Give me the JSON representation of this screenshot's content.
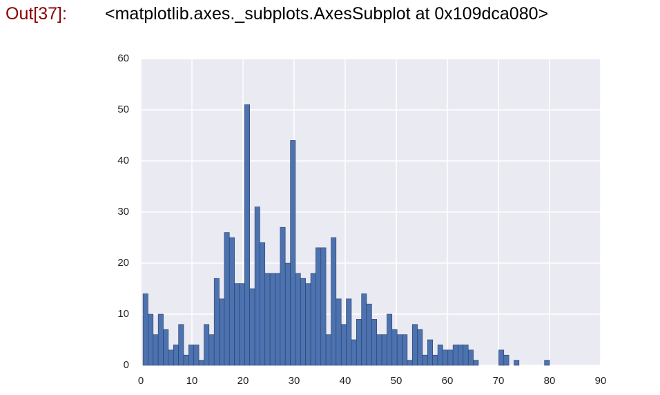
{
  "prompt": "Out[37]:",
  "output_text": "<matplotlib.axes._subplots.AxesSubplot at 0x109dca080>",
  "chart_data": {
    "type": "histogram",
    "bins": [
      0.42,
      1.41,
      2.41,
      3.4,
      4.4,
      5.39,
      6.39,
      7.38,
      8.38,
      9.37,
      10.37,
      11.36,
      12.36,
      13.35,
      14.35,
      15.34,
      16.34,
      17.33,
      18.33,
      19.32,
      20.32,
      21.31,
      22.31,
      23.3,
      24.29,
      25.29,
      26.28,
      27.28,
      28.27,
      29.27,
      30.26,
      31.26,
      32.25,
      33.25,
      34.24,
      35.24,
      36.23,
      37.23,
      38.22,
      39.22,
      40.21,
      41.21,
      42.2,
      43.2,
      44.19,
      45.19,
      46.18,
      47.17,
      48.17,
      49.16,
      50.16,
      51.15,
      52.15,
      53.14,
      54.14,
      55.13,
      56.13,
      57.12,
      58.12,
      59.11,
      60.11,
      61.1,
      62.1,
      63.09,
      64.09,
      65.08,
      66.08,
      67.07,
      68.07,
      69.06,
      70.06,
      71.05,
      72.04,
      73.04,
      74.03,
      75.03,
      76.02,
      77.02,
      78.01,
      79.01,
      80.0
    ],
    "values": [
      14,
      10,
      6,
      10,
      7,
      3,
      4,
      8,
      2,
      4,
      4,
      1,
      8,
      6,
      17,
      13,
      26,
      25,
      16,
      16,
      51,
      15,
      31,
      24,
      18,
      18,
      18,
      27,
      20,
      44,
      18,
      17,
      16,
      18,
      23,
      23,
      6,
      25,
      13,
      8,
      13,
      5,
      9,
      14,
      12,
      9,
      6,
      6,
      10,
      7,
      6,
      6,
      1,
      8,
      7,
      2,
      5,
      2,
      4,
      3,
      3,
      4,
      4,
      4,
      3,
      1,
      0,
      0,
      0,
      0,
      3,
      2,
      0,
      1,
      0,
      0,
      0,
      0,
      0,
      1
    ],
    "color": "#4c72b0",
    "xlim": [
      0,
      90
    ],
    "xticks": [
      0,
      10,
      20,
      30,
      40,
      50,
      60,
      70,
      80,
      90
    ],
    "ylim": [
      0,
      60
    ],
    "yticks": [
      0,
      10,
      20,
      30,
      40,
      50,
      60
    ],
    "grid": true
  }
}
